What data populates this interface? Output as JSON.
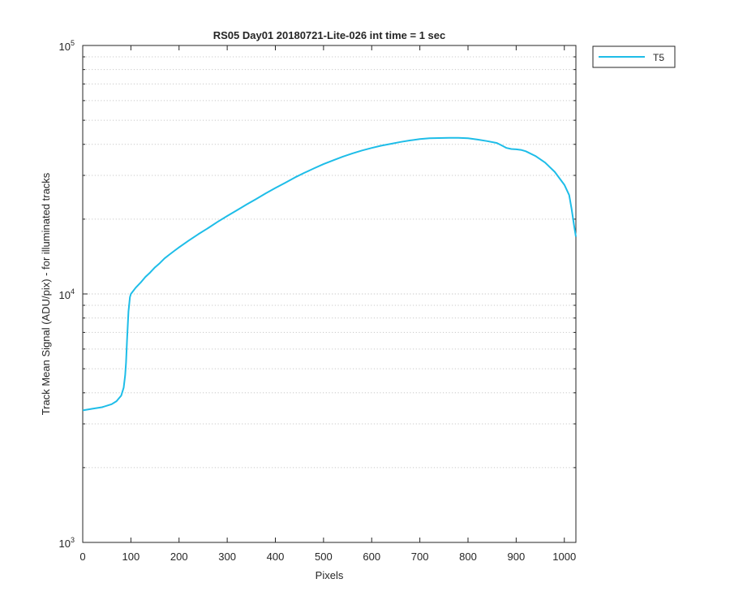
{
  "chart_data": {
    "type": "line",
    "title": "RS05 Day01 20180721-Lite-026 int time = 1 sec",
    "xlabel": "Pixels",
    "ylabel": "Track Mean Signal (ADU/pix) - for illuminated tracks",
    "xlim": [
      0,
      1024
    ],
    "ylim": [
      1000,
      100000
    ],
    "yscale": "log",
    "grid": "y-major-and-minor-dotted",
    "legend_position": "outside-top-right",
    "x_ticks": [
      0,
      100,
      200,
      300,
      400,
      500,
      600,
      700,
      800,
      900,
      1000
    ],
    "y_ticks": [
      {
        "value": 1000,
        "base": "10",
        "exp": "3"
      },
      {
        "value": 10000,
        "base": "10",
        "exp": "4"
      },
      {
        "value": 100000,
        "base": "10",
        "exp": "5"
      }
    ],
    "series": [
      {
        "name": "T5",
        "color": "#1ebde8",
        "x": [
          0,
          20,
          40,
          60,
          70,
          80,
          85,
          88,
          90,
          92,
          95,
          98,
          100,
          110,
          120,
          130,
          140,
          150,
          160,
          170,
          180,
          190,
          200,
          220,
          240,
          260,
          280,
          300,
          320,
          340,
          360,
          380,
          400,
          420,
          440,
          460,
          480,
          500,
          520,
          540,
          560,
          580,
          600,
          620,
          640,
          660,
          680,
          700,
          720,
          740,
          760,
          780,
          800,
          820,
          840,
          860,
          870,
          880,
          890,
          900,
          910,
          920,
          940,
          960,
          980,
          1000,
          1010,
          1015,
          1020,
          1024
        ],
        "y": [
          3400,
          3450,
          3500,
          3600,
          3700,
          3900,
          4200,
          4700,
          5300,
          6500,
          8500,
          9700,
          10000,
          10600,
          11100,
          11700,
          12200,
          12800,
          13300,
          13900,
          14400,
          14900,
          15400,
          16400,
          17400,
          18400,
          19500,
          20600,
          21700,
          22900,
          24100,
          25400,
          26700,
          28000,
          29400,
          30700,
          32000,
          33300,
          34500,
          35700,
          36800,
          37800,
          38700,
          39500,
          40200,
          40900,
          41500,
          42000,
          42300,
          42400,
          42500,
          42500,
          42300,
          41800,
          41200,
          40500,
          39600,
          38700,
          38300,
          38200,
          38000,
          37500,
          35900,
          33800,
          31000,
          27500,
          25000,
          22000,
          19000,
          17000
        ]
      }
    ]
  }
}
